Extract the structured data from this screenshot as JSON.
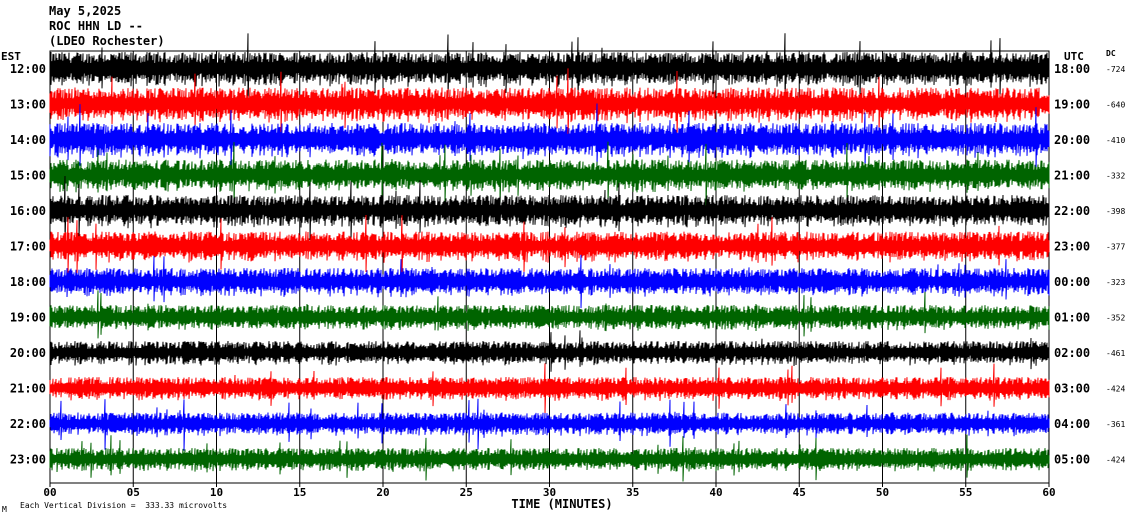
{
  "header": {
    "date": "May 5,2025",
    "station": "ROC HHN LD --",
    "location": "(LDEO Rochester)"
  },
  "left_zone": "EST",
  "right_zone": "UTC",
  "dc_label": "DC",
  "footer": {
    "scale_note": "Each Vertical Division =  333.33 microvolts",
    "corner_mark": "M"
  },
  "colors": {
    "black": "#000000",
    "red": "#ff0000",
    "blue": "#0000ff",
    "green": "#006400"
  },
  "chart_data": {
    "type": "line",
    "xlabel": "TIME (MINUTES)",
    "xlim": [
      0,
      60
    ],
    "x_ticks": [
      "00",
      "05",
      "10",
      "15",
      "20",
      "25",
      "30",
      "35",
      "40",
      "45",
      "50",
      "55",
      "60"
    ],
    "traces": [
      {
        "est": "12:00",
        "utc": "18:00",
        "dc": "-724",
        "color": "black",
        "level": 1.0
      },
      {
        "est": "13:00",
        "utc": "19:00",
        "dc": "-640",
        "color": "red",
        "level": 1.0
      },
      {
        "est": "14:00",
        "utc": "20:00",
        "dc": "-410",
        "color": "blue",
        "level": 1.0
      },
      {
        "est": "15:00",
        "utc": "21:00",
        "dc": "-332",
        "color": "green",
        "level": 0.9
      },
      {
        "est": "16:00",
        "utc": "22:00",
        "dc": "-398",
        "color": "black",
        "level": 0.9
      },
      {
        "est": "17:00",
        "utc": "23:00",
        "dc": "-377",
        "color": "red",
        "level": 0.8
      },
      {
        "est": "18:00",
        "utc": "00:00",
        "dc": "-323",
        "color": "blue",
        "level": 0.7
      },
      {
        "est": "19:00",
        "utc": "01:00",
        "dc": "-352",
        "color": "green",
        "level": 0.55
      },
      {
        "est": "20:00",
        "utc": "02:00",
        "dc": "-461",
        "color": "black",
        "level": 0.5
      },
      {
        "est": "21:00",
        "utc": "03:00",
        "dc": "-424",
        "color": "red",
        "level": 0.45
      },
      {
        "est": "22:00",
        "utc": "04:00",
        "dc": "-361",
        "color": "blue",
        "level": 0.45
      },
      {
        "est": "23:00",
        "utc": "05:00",
        "dc": "-424",
        "color": "green",
        "level": 0.45
      }
    ]
  }
}
